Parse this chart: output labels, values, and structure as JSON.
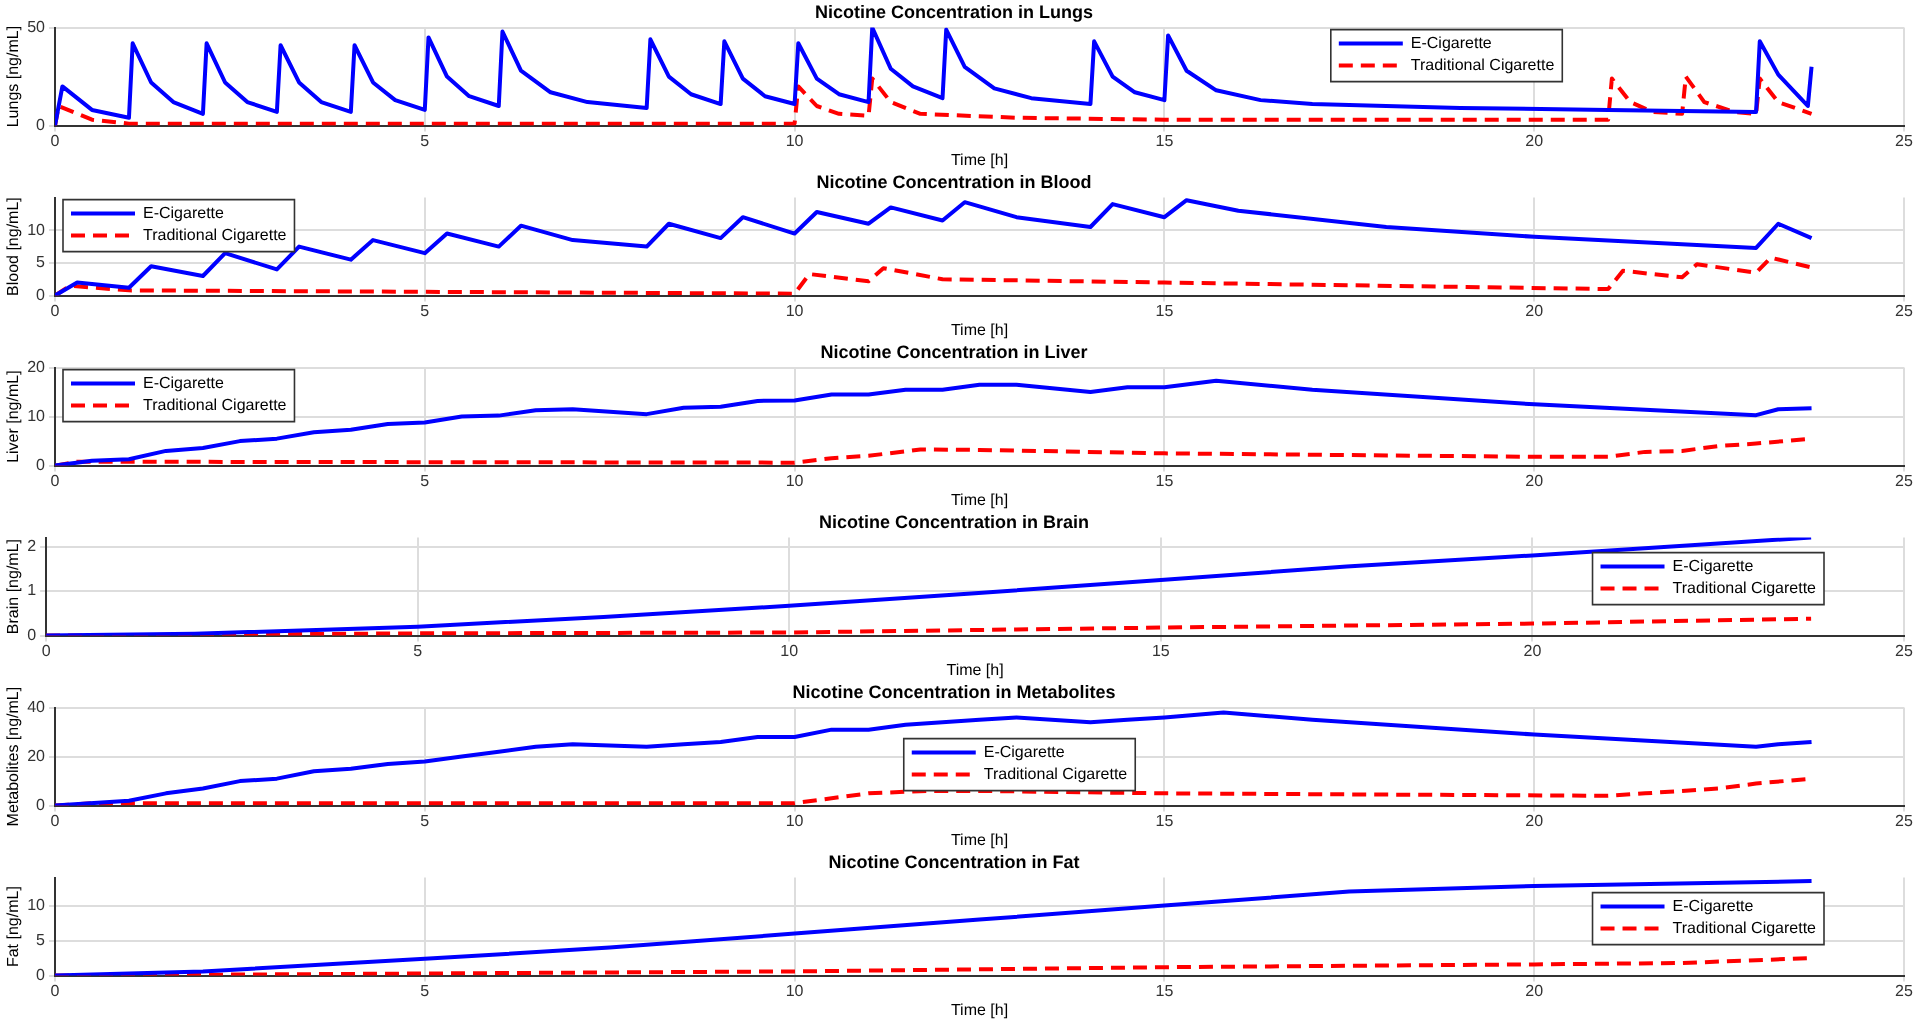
{
  "chart_data": [
    {
      "type": "line",
      "title": "Nicotine Concentration in Lungs",
      "xlabel": "Time [h]",
      "ylabel": "Lungs [ng/mL]",
      "xlim": [
        0,
        25
      ],
      "xticks": [
        0,
        5,
        10,
        15,
        20,
        25
      ],
      "ylim": [
        0,
        50
      ],
      "yticks": [
        0,
        50
      ],
      "grid": true,
      "legend": "top right",
      "marker": "none",
      "series": [
        {
          "name": "E-Cigarette",
          "color": "#0000ff",
          "line_style": "solid",
          "x": [
            0,
            0.1,
            0.5,
            1.0,
            1.05,
            1.3,
            1.6,
            2.0,
            2.05,
            2.3,
            2.6,
            3.0,
            3.05,
            3.3,
            3.6,
            4.0,
            4.05,
            4.3,
            4.6,
            5.0,
            5.05,
            5.3,
            5.6,
            6.0,
            6.05,
            6.3,
            6.7,
            7.2,
            8.0,
            8.05,
            8.3,
            8.6,
            9.0,
            9.05,
            9.3,
            9.6,
            10.0,
            10.05,
            10.3,
            10.6,
            11.0,
            11.05,
            11.3,
            11.6,
            12.0,
            12.05,
            12.3,
            12.7,
            13.2,
            14.0,
            14.05,
            14.3,
            14.6,
            15.0,
            15.05,
            15.3,
            15.7,
            16.3,
            17,
            19,
            21,
            23.0,
            23.05,
            23.3,
            23.6,
            23.7,
            23.75
          ],
          "values": [
            0,
            20,
            8,
            4,
            42,
            22,
            12,
            6,
            42,
            22,
            12,
            7,
            41,
            22,
            12,
            7,
            41,
            22,
            13,
            8,
            45,
            25,
            15,
            10,
            48,
            28,
            17,
            12,
            9,
            44,
            25,
            16,
            11,
            43,
            24,
            15,
            11,
            42,
            24,
            16,
            12,
            50,
            29,
            20,
            14,
            49,
            30,
            19,
            14,
            11,
            43,
            25,
            17,
            13,
            46,
            28,
            18,
            13,
            11,
            9,
            8,
            7,
            43,
            26,
            14,
            10,
            30
          ]
        },
        {
          "name": "Traditional Cigarette",
          "color": "#ff0000",
          "line_style": "dashed",
          "x": [
            0,
            0.05,
            0.5,
            1,
            10,
            10.05,
            10.3,
            10.6,
            11,
            11.05,
            11.3,
            11.7,
            13,
            15,
            21,
            21.05,
            21.3,
            21.6,
            22,
            22.05,
            22.3,
            22.7,
            23,
            23.05,
            23.3,
            23.75
          ],
          "values": [
            0,
            10,
            3,
            1,
            1,
            20,
            10,
            6,
            5,
            24,
            12,
            6,
            4,
            3,
            3,
            24,
            12,
            7,
            6,
            25,
            12,
            7,
            6,
            24,
            12,
            6
          ]
        }
      ]
    },
    {
      "type": "line",
      "title": "Nicotine Concentration in Blood",
      "xlabel": "Time [h]",
      "ylabel": "Blood [ng/mL]",
      "xlim": [
        0,
        25
      ],
      "xticks": [
        0,
        5,
        10,
        15,
        20,
        25
      ],
      "ylim": [
        0,
        15
      ],
      "yticks": [
        0,
        5,
        10
      ],
      "grid": true,
      "legend": "top left",
      "marker": "none",
      "series": [
        {
          "name": "E-Cigarette",
          "color": "#0000ff",
          "line_style": "solid",
          "x": [
            0,
            0.3,
            1,
            1.3,
            2,
            2.3,
            3,
            3.3,
            4,
            4.3,
            5,
            5.3,
            6,
            6.3,
            7,
            8,
            8.3,
            9,
            9.3,
            10,
            10.3,
            11,
            11.3,
            12,
            12.3,
            13,
            14,
            14.3,
            15,
            15.3,
            16,
            18,
            20,
            23,
            23.3,
            23.75
          ],
          "values": [
            0,
            2,
            1.2,
            4.5,
            3,
            6.5,
            4,
            7.5,
            5.5,
            8.5,
            6.5,
            9.5,
            7.5,
            10.7,
            8.5,
            7.5,
            11,
            8.8,
            12,
            9.5,
            12.8,
            11,
            13.5,
            11.5,
            14.3,
            12,
            10.5,
            14,
            12,
            14.6,
            13,
            10.5,
            9,
            7.3,
            11,
            8.8
          ]
        },
        {
          "name": "Traditional Cigarette",
          "color": "#ff0000",
          "line_style": "dashed",
          "x": [
            0,
            0.2,
            1,
            10,
            10.2,
            11,
            11.2,
            12,
            15,
            21,
            21.2,
            22,
            22.2,
            23,
            23.2,
            23.75
          ],
          "values": [
            0,
            1.5,
            0.8,
            0.3,
            3.3,
            2.2,
            4.2,
            2.5,
            2,
            1,
            3.8,
            2.8,
            4.8,
            3.5,
            5.8,
            4.3
          ]
        }
      ]
    },
    {
      "type": "line",
      "title": "Nicotine Concentration in Liver",
      "xlabel": "Time [h]",
      "ylabel": "Liver [ng/mL]",
      "xlim": [
        0,
        25
      ],
      "xticks": [
        0,
        5,
        10,
        15,
        20,
        25
      ],
      "ylim": [
        0,
        20
      ],
      "yticks": [
        0,
        10,
        20
      ],
      "grid": true,
      "legend": "top left",
      "marker": "none",
      "series": [
        {
          "name": "E-Cigarette",
          "color": "#0000ff",
          "line_style": "solid",
          "x": [
            0,
            0.5,
            1,
            1.5,
            2,
            2.5,
            3,
            3.5,
            4,
            4.5,
            5,
            5.5,
            6,
            6.5,
            7,
            8,
            8.5,
            9,
            9.5,
            10,
            10.5,
            11,
            11.5,
            12,
            12.5,
            13,
            14,
            14.5,
            15,
            15.7,
            17,
            20,
            23,
            23.3,
            23.75
          ],
          "values": [
            0,
            1,
            1.3,
            3,
            3.6,
            5,
            5.5,
            6.8,
            7.3,
            8.5,
            8.8,
            10,
            10.2,
            11.3,
            11.5,
            10.5,
            11.8,
            12,
            13.2,
            13.3,
            14.5,
            14.5,
            15.5,
            15.5,
            16.5,
            16.5,
            15,
            16,
            16,
            17.3,
            15.5,
            12.5,
            10.3,
            11.5,
            11.7
          ]
        },
        {
          "name": "Traditional Cigarette",
          "color": "#ff0000",
          "line_style": "dashed",
          "x": [
            0,
            0.3,
            10,
            10.5,
            11,
            11.7,
            12.5,
            15,
            20,
            21,
            21.5,
            22,
            22.5,
            23,
            23.75
          ],
          "values": [
            0,
            0.8,
            0.6,
            1.5,
            2,
            3.3,
            3.2,
            2.5,
            1.8,
            1.8,
            2.8,
            3,
            4,
            4.5,
            5.5
          ]
        }
      ]
    },
    {
      "type": "line",
      "title": "Nicotine Concentration in Brain",
      "xlabel": "Time [h]",
      "ylabel": "Brain [ng/mL]",
      "xlim": [
        0,
        25
      ],
      "xticks": [
        0,
        5,
        10,
        15,
        20,
        25
      ],
      "ylim": [
        0,
        2.2
      ],
      "yticks": [
        0,
        1,
        2
      ],
      "grid": true,
      "legend": "right",
      "marker": "none",
      "series": [
        {
          "name": "E-Cigarette",
          "color": "#0000ff",
          "line_style": "solid",
          "x": [
            0,
            2,
            5,
            7.5,
            10,
            12.5,
            15,
            17.5,
            20,
            23.75
          ],
          "values": [
            0,
            0.04,
            0.2,
            0.42,
            0.67,
            0.95,
            1.25,
            1.55,
            1.8,
            2.2
          ]
        },
        {
          "name": "Traditional Cigarette",
          "color": "#ff0000",
          "line_style": "dashed",
          "x": [
            0,
            5,
            10,
            15,
            20,
            23.75
          ],
          "values": [
            0,
            0.05,
            0.07,
            0.18,
            0.27,
            0.38
          ]
        }
      ]
    },
    {
      "type": "line",
      "title": "Nicotine Concentration in Metabolites",
      "xlabel": "Time [h]",
      "ylabel": "Metabolites [ng/mL]",
      "xlim": [
        0,
        25
      ],
      "xticks": [
        0,
        5,
        10,
        15,
        20,
        25
      ],
      "ylim": [
        0,
        40
      ],
      "yticks": [
        0,
        20,
        40
      ],
      "grid": true,
      "legend": "center",
      "marker": "none",
      "series": [
        {
          "name": "E-Cigarette",
          "color": "#0000ff",
          "line_style": "solid",
          "x": [
            0,
            1,
            1.5,
            2,
            2.5,
            3,
            3.5,
            4,
            4.5,
            5,
            5.5,
            6,
            6.5,
            7,
            8,
            8.5,
            9,
            9.5,
            10,
            10.5,
            11,
            11.5,
            12,
            12.5,
            13,
            14,
            14.5,
            15,
            15.8,
            17,
            20,
            23,
            23.3,
            23.75
          ],
          "values": [
            0,
            2,
            5,
            7,
            10,
            11,
            14,
            15,
            17,
            18,
            20,
            22,
            24,
            25,
            24,
            25,
            26,
            28,
            28,
            31,
            31,
            33,
            34,
            35,
            36,
            34,
            35,
            36,
            38,
            35,
            29,
            24,
            25,
            26
          ]
        },
        {
          "name": "Traditional Cigarette",
          "color": "#ff0000",
          "line_style": "dashed",
          "x": [
            0,
            0.5,
            10,
            10.5,
            11,
            11.8,
            12.5,
            15,
            21,
            21.5,
            22.5,
            23,
            23.75
          ],
          "values": [
            0,
            1,
            1,
            3,
            5,
            6,
            6,
            5,
            4,
            5,
            7,
            9,
            11
          ]
        }
      ]
    },
    {
      "type": "line",
      "title": "Nicotine Concentration in Fat",
      "xlabel": "Time [h]",
      "ylabel": "Fat [ng/mL]",
      "xlim": [
        0,
        25
      ],
      "xticks": [
        0,
        5,
        10,
        15,
        20,
        25
      ],
      "ylim": [
        0,
        14
      ],
      "yticks": [
        0,
        5,
        10
      ],
      "grid": true,
      "legend": "right",
      "marker": "none",
      "series": [
        {
          "name": "E-Cigarette",
          "color": "#0000ff",
          "line_style": "solid",
          "x": [
            0,
            2,
            5,
            7.5,
            10,
            12.5,
            15,
            17.5,
            20,
            23.75
          ],
          "values": [
            0,
            0.6,
            2.4,
            4,
            6,
            8,
            10,
            12,
            12.8,
            13.5
          ]
        },
        {
          "name": "Traditional Cigarette",
          "color": "#ff0000",
          "line_style": "dashed",
          "x": [
            0,
            5,
            10,
            15,
            20,
            22,
            23.75
          ],
          "values": [
            0,
            0.3,
            0.6,
            1.2,
            1.6,
            1.8,
            2.5
          ]
        }
      ]
    }
  ]
}
